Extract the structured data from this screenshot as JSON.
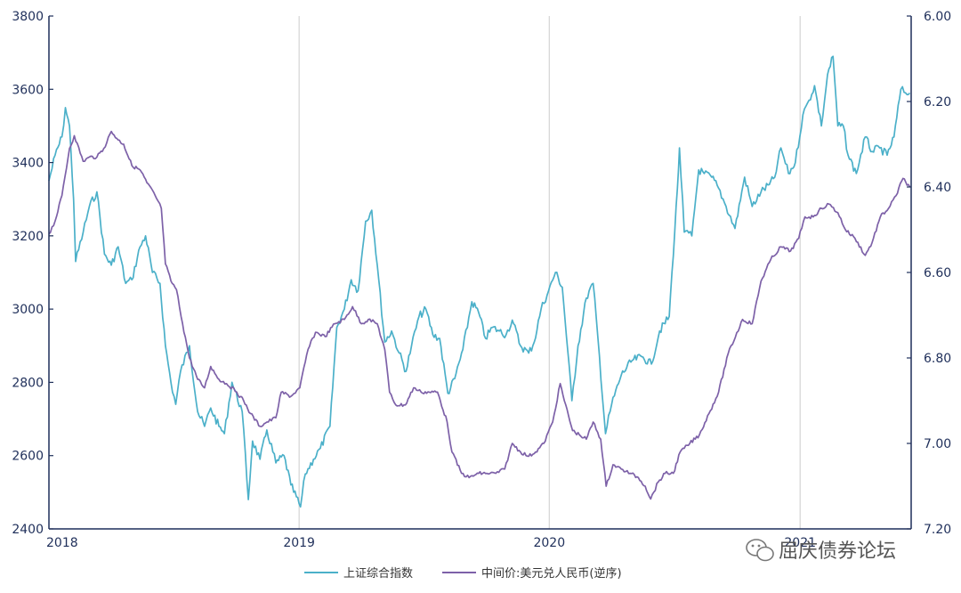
{
  "chart_data": {
    "type": "line",
    "x_ticks": [
      "2018",
      "2019",
      "2020",
      "2021"
    ],
    "left_axis": {
      "ticks": [
        2400,
        2600,
        2800,
        3000,
        3200,
        3400,
        3600,
        3800
      ],
      "ylim": [
        2400,
        3800
      ]
    },
    "right_axis": {
      "ticks": [
        "6.00",
        "6.20",
        "6.40",
        "6.60",
        "6.80",
        "7.00",
        "7.20"
      ],
      "ylim": [
        6.0,
        7.2
      ],
      "inverted": true
    },
    "grid": "vertical year lines",
    "legend_position": "bottom-center",
    "series": [
      {
        "name": "上证综合指数",
        "axis": "left",
        "color": "#4bb0c9",
        "points": [
          [
            "2018-01-01",
            3350
          ],
          [
            "2018-01-10",
            3420
          ],
          [
            "2018-01-20",
            3470
          ],
          [
            "2018-01-25",
            3550
          ],
          [
            "2018-01-31",
            3500
          ],
          [
            "2018-02-06",
            3300
          ],
          [
            "2018-02-09",
            3130
          ],
          [
            "2018-02-20",
            3210
          ],
          [
            "2018-03-01",
            3280
          ],
          [
            "2018-03-12",
            3320
          ],
          [
            "2018-03-23",
            3150
          ],
          [
            "2018-04-02",
            3120
          ],
          [
            "2018-04-12",
            3170
          ],
          [
            "2018-04-23",
            3070
          ],
          [
            "2018-05-02",
            3080
          ],
          [
            "2018-05-14",
            3170
          ],
          [
            "2018-05-22",
            3200
          ],
          [
            "2018-06-01",
            3100
          ],
          [
            "2018-06-12",
            3070
          ],
          [
            "2018-06-20",
            2900
          ],
          [
            "2018-06-28",
            2800
          ],
          [
            "2018-07-05",
            2740
          ],
          [
            "2018-07-12",
            2830
          ],
          [
            "2018-07-25",
            2900
          ],
          [
            "2018-08-06",
            2720
          ],
          [
            "2018-08-16",
            2680
          ],
          [
            "2018-08-25",
            2730
          ],
          [
            "2018-09-06",
            2680
          ],
          [
            "2018-09-14",
            2660
          ],
          [
            "2018-09-25",
            2800
          ],
          [
            "2018-10-10",
            2720
          ],
          [
            "2018-10-19",
            2480
          ],
          [
            "2018-10-25",
            2640
          ],
          [
            "2018-11-05",
            2590
          ],
          [
            "2018-11-15",
            2670
          ],
          [
            "2018-11-28",
            2580
          ],
          [
            "2018-12-10",
            2600
          ],
          [
            "2018-12-20",
            2520
          ],
          [
            "2019-01-03",
            2460
          ],
          [
            "2019-01-10",
            2550
          ],
          [
            "2019-01-22",
            2590
          ],
          [
            "2019-02-01",
            2620
          ],
          [
            "2019-02-15",
            2680
          ],
          [
            "2019-02-25",
            2950
          ],
          [
            "2019-03-08",
            3000
          ],
          [
            "2019-03-18",
            3080
          ],
          [
            "2019-03-28",
            3050
          ],
          [
            "2019-04-08",
            3240
          ],
          [
            "2019-04-17",
            3270
          ],
          [
            "2019-04-25",
            3120
          ],
          [
            "2019-05-06",
            2910
          ],
          [
            "2019-05-16",
            2940
          ],
          [
            "2019-05-27",
            2880
          ],
          [
            "2019-06-06",
            2830
          ],
          [
            "2019-06-14",
            2900
          ],
          [
            "2019-06-25",
            2980
          ],
          [
            "2019-07-05",
            3000
          ],
          [
            "2019-07-15",
            2930
          ],
          [
            "2019-07-25",
            2920
          ],
          [
            "2019-08-06",
            2770
          ],
          [
            "2019-08-16",
            2810
          ],
          [
            "2019-08-28",
            2890
          ],
          [
            "2019-09-10",
            3020
          ],
          [
            "2019-09-20",
            2990
          ],
          [
            "2019-09-30",
            2920
          ],
          [
            "2019-10-10",
            2950
          ],
          [
            "2019-10-20",
            2940
          ],
          [
            "2019-10-30",
            2930
          ],
          [
            "2019-11-08",
            2970
          ],
          [
            "2019-11-20",
            2900
          ],
          [
            "2019-12-02",
            2880
          ],
          [
            "2019-12-10",
            2910
          ],
          [
            "2019-12-20",
            3000
          ],
          [
            "2019-12-31",
            3050
          ],
          [
            "2020-01-10",
            3100
          ],
          [
            "2020-01-20",
            3060
          ],
          [
            "2020-02-03",
            2750
          ],
          [
            "2020-02-12",
            2900
          ],
          [
            "2020-02-24",
            3030
          ],
          [
            "2020-03-05",
            3070
          ],
          [
            "2020-03-12",
            2920
          ],
          [
            "2020-03-23",
            2660
          ],
          [
            "2020-04-01",
            2740
          ],
          [
            "2020-04-15",
            2820
          ],
          [
            "2020-05-01",
            2860
          ],
          [
            "2020-05-15",
            2870
          ],
          [
            "2020-05-29",
            2850
          ],
          [
            "2020-06-10",
            2940
          ],
          [
            "2020-06-24",
            2980
          ],
          [
            "2020-07-06",
            3330
          ],
          [
            "2020-07-09",
            3440
          ],
          [
            "2020-07-16",
            3210
          ],
          [
            "2020-07-27",
            3200
          ],
          [
            "2020-08-06",
            3380
          ],
          [
            "2020-08-14",
            3370
          ],
          [
            "2020-08-25",
            3360
          ],
          [
            "2020-09-04",
            3330
          ],
          [
            "2020-09-15",
            3280
          ],
          [
            "2020-09-28",
            3220
          ],
          [
            "2020-10-12",
            3360
          ],
          [
            "2020-10-23",
            3280
          ],
          [
            "2020-11-05",
            3320
          ],
          [
            "2020-11-17",
            3340
          ],
          [
            "2020-11-25",
            3360
          ],
          [
            "2020-12-04",
            3440
          ],
          [
            "2020-12-15",
            3370
          ],
          [
            "2020-12-25",
            3400
          ],
          [
            "2021-01-05",
            3530
          ],
          [
            "2021-01-14",
            3570
          ],
          [
            "2021-01-22",
            3610
          ],
          [
            "2021-02-01",
            3500
          ],
          [
            "2021-02-10",
            3640
          ],
          [
            "2021-02-18",
            3690
          ],
          [
            "2021-02-25",
            3500
          ],
          [
            "2021-03-05",
            3500
          ],
          [
            "2021-03-12",
            3420
          ],
          [
            "2021-03-24",
            3370
          ],
          [
            "2021-04-06",
            3470
          ],
          [
            "2021-04-16",
            3430
          ],
          [
            "2021-04-27",
            3440
          ],
          [
            "2021-05-08",
            3420
          ],
          [
            "2021-05-18",
            3470
          ],
          [
            "2021-05-28",
            3600
          ],
          [
            "2021-06-04",
            3590
          ],
          [
            "2021-06-10",
            3590
          ]
        ]
      },
      {
        "name": "中间价:美元兑人民币(逆序)",
        "axis": "right",
        "color": "#7d61a8",
        "points": [
          [
            "2018-01-01",
            6.51
          ],
          [
            "2018-01-10",
            6.48
          ],
          [
            "2018-01-20",
            6.42
          ],
          [
            "2018-01-31",
            6.31
          ],
          [
            "2018-02-07",
            6.28
          ],
          [
            "2018-02-20",
            6.34
          ],
          [
            "2018-03-01",
            6.33
          ],
          [
            "2018-03-12",
            6.33
          ],
          [
            "2018-03-22",
            6.31
          ],
          [
            "2018-04-02",
            6.27
          ],
          [
            "2018-04-12",
            6.29
          ],
          [
            "2018-04-20",
            6.3
          ],
          [
            "2018-05-02",
            6.35
          ],
          [
            "2018-05-14",
            6.36
          ],
          [
            "2018-05-24",
            6.39
          ],
          [
            "2018-06-05",
            6.42
          ],
          [
            "2018-06-14",
            6.45
          ],
          [
            "2018-06-20",
            6.58
          ],
          [
            "2018-06-28",
            6.62
          ],
          [
            "2018-07-06",
            6.64
          ],
          [
            "2018-07-15",
            6.72
          ],
          [
            "2018-07-25",
            6.8
          ],
          [
            "2018-08-06",
            6.85
          ],
          [
            "2018-08-16",
            6.87
          ],
          [
            "2018-08-25",
            6.82
          ],
          [
            "2018-09-06",
            6.85
          ],
          [
            "2018-09-17",
            6.86
          ],
          [
            "2018-10-02",
            6.88
          ],
          [
            "2018-10-12",
            6.9
          ],
          [
            "2018-10-22",
            6.93
          ],
          [
            "2018-11-05",
            6.96
          ],
          [
            "2018-11-15",
            6.95
          ],
          [
            "2018-11-28",
            6.94
          ],
          [
            "2018-12-06",
            6.88
          ],
          [
            "2018-12-20",
            6.89
          ],
          [
            "2019-01-02",
            6.87
          ],
          [
            "2019-01-14",
            6.78
          ],
          [
            "2019-01-25",
            6.74
          ],
          [
            "2019-02-08",
            6.75
          ],
          [
            "2019-02-22",
            6.72
          ],
          [
            "2019-03-08",
            6.71
          ],
          [
            "2019-03-20",
            6.68
          ],
          [
            "2019-04-02",
            6.72
          ],
          [
            "2019-04-12",
            6.71
          ],
          [
            "2019-04-25",
            6.72
          ],
          [
            "2019-05-06",
            6.78
          ],
          [
            "2019-05-13",
            6.88
          ],
          [
            "2019-05-22",
            6.91
          ],
          [
            "2019-06-05",
            6.91
          ],
          [
            "2019-06-17",
            6.87
          ],
          [
            "2019-06-28",
            6.88
          ],
          [
            "2019-07-10",
            6.88
          ],
          [
            "2019-07-22",
            6.88
          ],
          [
            "2019-08-05",
            6.95
          ],
          [
            "2019-08-12",
            7.02
          ],
          [
            "2019-08-26",
            7.07
          ],
          [
            "2019-09-06",
            7.08
          ],
          [
            "2019-09-20",
            7.07
          ],
          [
            "2019-10-02",
            7.07
          ],
          [
            "2019-10-15",
            7.07
          ],
          [
            "2019-10-28",
            7.06
          ],
          [
            "2019-11-08",
            7.0
          ],
          [
            "2019-11-20",
            7.02
          ],
          [
            "2019-12-02",
            7.03
          ],
          [
            "2019-12-12",
            7.02
          ],
          [
            "2019-12-24",
            7.0
          ],
          [
            "2020-01-06",
            6.95
          ],
          [
            "2020-01-17",
            6.86
          ],
          [
            "2020-01-23",
            6.9
          ],
          [
            "2020-02-04",
            6.97
          ],
          [
            "2020-02-14",
            6.98
          ],
          [
            "2020-02-24",
            6.99
          ],
          [
            "2020-03-05",
            6.95
          ],
          [
            "2020-03-16",
            6.99
          ],
          [
            "2020-03-24",
            7.1
          ],
          [
            "2020-04-03",
            7.05
          ],
          [
            "2020-04-15",
            7.06
          ],
          [
            "2020-04-28",
            7.07
          ],
          [
            "2020-05-10",
            7.08
          ],
          [
            "2020-05-20",
            7.1
          ],
          [
            "2020-05-28",
            7.13
          ],
          [
            "2020-06-08",
            7.09
          ],
          [
            "2020-06-18",
            7.07
          ],
          [
            "2020-06-30",
            7.07
          ],
          [
            "2020-07-10",
            7.02
          ],
          [
            "2020-07-24",
            7.0
          ],
          [
            "2020-08-07",
            6.98
          ],
          [
            "2020-08-21",
            6.93
          ],
          [
            "2020-09-04",
            6.88
          ],
          [
            "2020-09-18",
            6.79
          ],
          [
            "2020-10-09",
            6.71
          ],
          [
            "2020-10-23",
            6.72
          ],
          [
            "2020-11-05",
            6.62
          ],
          [
            "2020-11-19",
            6.57
          ],
          [
            "2020-12-04",
            6.54
          ],
          [
            "2020-12-18",
            6.55
          ],
          [
            "2020-12-30",
            6.52
          ],
          [
            "2021-01-08",
            6.47
          ],
          [
            "2021-01-20",
            6.47
          ],
          [
            "2021-02-01",
            6.45
          ],
          [
            "2021-02-12",
            6.44
          ],
          [
            "2021-02-25",
            6.46
          ],
          [
            "2021-03-08",
            6.5
          ],
          [
            "2021-03-22",
            6.52
          ],
          [
            "2021-04-06",
            6.56
          ],
          [
            "2021-04-16",
            6.53
          ],
          [
            "2021-04-28",
            6.47
          ],
          [
            "2021-05-10",
            6.45
          ],
          [
            "2021-05-21",
            6.42
          ],
          [
            "2021-05-31",
            6.38
          ],
          [
            "2021-06-10",
            6.4
          ]
        ]
      }
    ]
  },
  "watermark": {
    "text": "屈庆债券论坛",
    "icon": "wechat-icon"
  }
}
